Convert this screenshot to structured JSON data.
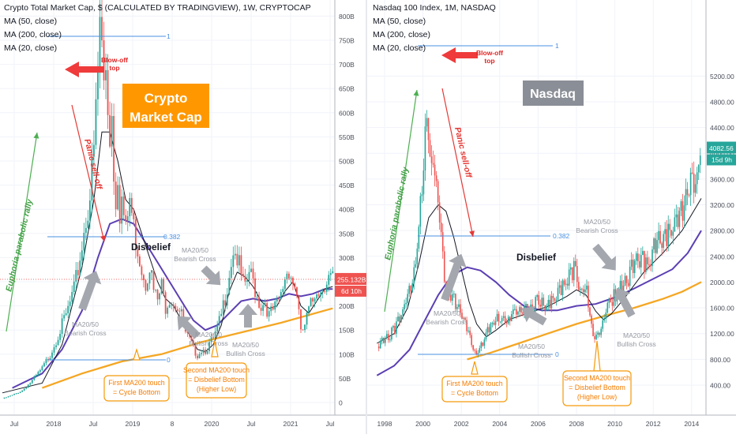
{
  "chart_data": [
    {
      "type": "candlestick",
      "title": "Crypto Total Market Cap, $ (CALCULATED BY TRADINGVIEW), 1W, CRYPTOCAP",
      "legend": [
        "MA (50, close)",
        "MA (200, close)",
        "MA (20, close)"
      ],
      "banner": [
        "Crypto",
        "Market Cap"
      ],
      "y_ticks": [
        "800B",
        "750B",
        "700B",
        "650B",
        "600B",
        "550B",
        "500B",
        "450B",
        "400B",
        "350B",
        "300B",
        "250B",
        "200B",
        "150B",
        "100B",
        "50B",
        "0"
      ],
      "x_ticks": [
        "Jul",
        "2018",
        "Jul",
        "2019",
        "8",
        "2020",
        "Jul",
        "2021",
        "Jul"
      ],
      "ylim": [
        0,
        820
      ],
      "last_price": "255.132B",
      "last_price_value": 255,
      "countdown": "6d 10h",
      "fib": {
        "level_1": "1",
        "level_0382": "0.382",
        "level_0": "0"
      },
      "annotations": {
        "blowoff": [
          "Blow-off",
          "top"
        ],
        "euphoria": "Euphoria parabolic rally",
        "panic": "Panic sell-off",
        "disbelief": "Disbelief",
        "bearish_top": [
          "MA20/50",
          "Bearish Cross"
        ],
        "bearish_left": [
          "MA20/50",
          "Bearish Cross"
        ],
        "bullish_mid": [
          "MA20/50",
          "Bullish Cross"
        ],
        "bullish_right": [
          "MA20/50",
          "Bullish Cross"
        ],
        "first_touch": [
          "First MA200 touch",
          "= Cycle Bottom"
        ],
        "second_touch": [
          "Second MA200 touch",
          "= Disbelief Bottom",
          "(Higher Low)"
        ]
      },
      "price_path": [
        [
          0,
          8
        ],
        [
          5,
          15
        ],
        [
          10,
          25
        ],
        [
          15,
          45
        ],
        [
          20,
          70
        ],
        [
          24,
          100
        ],
        [
          28,
          140
        ],
        [
          32,
          180
        ],
        [
          36,
          230
        ],
        [
          39,
          300
        ],
        [
          42,
          380
        ],
        [
          44,
          430
        ],
        [
          46,
          520
        ],
        [
          47,
          600
        ],
        [
          48,
          680
        ],
        [
          49,
          790
        ],
        [
          50,
          730
        ],
        [
          51,
          660
        ],
        [
          52,
          700
        ],
        [
          53,
          620
        ],
        [
          54,
          560
        ],
        [
          55,
          600
        ],
        [
          56,
          480
        ],
        [
          57,
          430
        ],
        [
          58,
          480
        ],
        [
          59,
          400
        ],
        [
          60,
          420
        ],
        [
          62,
          350
        ],
        [
          64,
          420
        ],
        [
          66,
          360
        ],
        [
          68,
          320
        ],
        [
          70,
          280
        ],
        [
          72,
          250
        ],
        [
          74,
          290
        ],
        [
          76,
          230
        ],
        [
          78,
          210
        ],
        [
          80,
          240
        ],
        [
          82,
          200
        ],
        [
          84,
          220
        ],
        [
          86,
          210
        ],
        [
          88,
          200
        ],
        [
          90,
          180
        ],
        [
          92,
          140
        ],
        [
          94,
          130
        ],
        [
          96,
          110
        ],
        [
          98,
          100
        ],
        [
          100,
          110
        ],
        [
          102,
          110
        ],
        [
          104,
          120
        ],
        [
          106,
          130
        ],
        [
          108,
          150
        ],
        [
          110,
          180
        ],
        [
          112,
          220
        ],
        [
          114,
          270
        ],
        [
          116,
          320
        ],
        [
          118,
          300
        ],
        [
          120,
          260
        ],
        [
          122,
          230
        ],
        [
          124,
          270
        ],
        [
          126,
          250
        ],
        [
          128,
          220
        ],
        [
          130,
          200
        ],
        [
          132,
          210
        ],
        [
          134,
          180
        ],
        [
          136,
          190
        ],
        [
          138,
          200
        ],
        [
          140,
          220
        ],
        [
          142,
          260
        ],
        [
          144,
          280
        ],
        [
          146,
          250
        ],
        [
          148,
          230
        ],
        [
          150,
          140
        ],
        [
          152,
          160
        ],
        [
          154,
          190
        ],
        [
          156,
          210
        ],
        [
          158,
          240
        ],
        [
          160,
          230
        ],
        [
          162,
          250
        ],
        [
          164,
          260
        ],
        [
          166,
          255
        ]
      ],
      "ma20": [
        [
          0,
          20
        ],
        [
          20,
          40
        ],
        [
          30,
          120
        ],
        [
          40,
          280
        ],
        [
          46,
          420
        ],
        [
          50,
          560
        ],
        [
          54,
          560
        ],
        [
          58,
          500
        ],
        [
          62,
          420
        ],
        [
          66,
          400
        ],
        [
          70,
          350
        ],
        [
          74,
          300
        ],
        [
          78,
          250
        ],
        [
          82,
          215
        ],
        [
          86,
          200
        ],
        [
          90,
          170
        ],
        [
          94,
          140
        ],
        [
          98,
          110
        ],
        [
          102,
          105
        ],
        [
          106,
          120
        ],
        [
          110,
          160
        ],
        [
          114,
          230
        ],
        [
          118,
          270
        ],
        [
          122,
          260
        ],
        [
          126,
          240
        ],
        [
          130,
          210
        ],
        [
          134,
          195
        ],
        [
          138,
          200
        ],
        [
          142,
          230
        ],
        [
          146,
          250
        ],
        [
          150,
          200
        ],
        [
          154,
          185
        ],
        [
          158,
          210
        ],
        [
          162,
          235
        ],
        [
          166,
          240
        ]
      ],
      "ma50": [
        [
          5,
          30
        ],
        [
          20,
          60
        ],
        [
          30,
          110
        ],
        [
          40,
          190
        ],
        [
          48,
          300
        ],
        [
          54,
          370
        ],
        [
          60,
          380
        ],
        [
          66,
          370
        ],
        [
          72,
          330
        ],
        [
          78,
          290
        ],
        [
          84,
          250
        ],
        [
          90,
          210
        ],
        [
          96,
          170
        ],
        [
          102,
          150
        ],
        [
          108,
          160
        ],
        [
          114,
          185
        ],
        [
          120,
          210
        ],
        [
          126,
          215
        ],
        [
          132,
          210
        ],
        [
          138,
          215
        ],
        [
          144,
          225
        ],
        [
          150,
          220
        ],
        [
          156,
          225
        ],
        [
          162,
          235
        ],
        [
          166,
          235
        ]
      ],
      "ma200": [
        [
          20,
          30
        ],
        [
          40,
          60
        ],
        [
          60,
          85
        ],
        [
          80,
          100
        ],
        [
          100,
          125
        ],
        [
          120,
          145
        ],
        [
          140,
          165
        ],
        [
          166,
          195
        ]
      ]
    },
    {
      "type": "candlestick",
      "title": "Nasdaq 100 Index, 1M, NASDAQ",
      "legend": [
        "MA (50, close)",
        "MA (200, close)",
        "MA (20, close)"
      ],
      "banner": [
        "Nasdaq"
      ],
      "y_ticks": [
        "5200.00",
        "4800.00",
        "4400.00",
        "4000.00",
        "3600.00",
        "3200.00",
        "2800.00",
        "2400.00",
        "2000.00",
        "1600.00",
        "1200.00",
        "800.00",
        "400.00"
      ],
      "x_ticks": [
        "1998",
        "2000",
        "2002",
        "2004",
        "2006",
        "2008",
        "2010",
        "2012",
        "2014"
      ],
      "ylim": [
        100,
        5450
      ],
      "last_price": "4082.56",
      "last_price_value": 4082.56,
      "countdown": "15d 9h",
      "fib": {
        "level_1": "1",
        "level_0382": "0.382",
        "level_0": "0"
      },
      "annotations": {
        "blowoff": [
          "Blow-off",
          "top"
        ],
        "euphoria": "Euphoria parabolic rally",
        "panic": "Panic sell-off",
        "disbelief": "Disbelief",
        "bearish_top": [
          "MA20/50",
          "Bearish Cross"
        ],
        "bearish_left": [
          "MA20/50",
          "Bearish Cross"
        ],
        "bullish_mid": [
          "MA20/50",
          "Bullish Cross"
        ],
        "bullish_right": [
          "MA20/50",
          "Bullish Cross"
        ],
        "first_touch": [
          "First MA200 touch",
          "= Cycle Bottom"
        ],
        "second_touch": [
          "Second MA200 touch",
          "= Disbelief Bottom",
          "(Higher Low)"
        ]
      },
      "price_path": [
        [
          1997.6,
          1000
        ],
        [
          1998,
          1100
        ],
        [
          1998.5,
          1250
        ],
        [
          1999,
          1600
        ],
        [
          1999.5,
          2100
        ],
        [
          1999.8,
          2800
        ],
        [
          2000.0,
          3800
        ],
        [
          2000.2,
          4700
        ],
        [
          2000.4,
          3700
        ],
        [
          2000.6,
          3900
        ],
        [
          2000.8,
          3200
        ],
        [
          2001.0,
          2500
        ],
        [
          2001.2,
          1900
        ],
        [
          2001.5,
          1800
        ],
        [
          2001.8,
          1600
        ],
        [
          2002.0,
          1500
        ],
        [
          2002.3,
          1300
        ],
        [
          2002.6,
          1000
        ],
        [
          2002.8,
          850
        ],
        [
          2003.0,
          1000
        ],
        [
          2003.3,
          1200
        ],
        [
          2003.6,
          1350
        ],
        [
          2004.0,
          1450
        ],
        [
          2004.3,
          1400
        ],
        [
          2004.6,
          1500
        ],
        [
          2005.0,
          1550
        ],
        [
          2005.5,
          1600
        ],
        [
          2006.0,
          1700
        ],
        [
          2006.5,
          1600
        ],
        [
          2007.0,
          1800
        ],
        [
          2007.5,
          2000
        ],
        [
          2007.9,
          2200
        ],
        [
          2008.2,
          1800
        ],
        [
          2008.5,
          1900
        ],
        [
          2008.8,
          1300
        ],
        [
          2009.0,
          1100
        ],
        [
          2009.3,
          1300
        ],
        [
          2009.6,
          1600
        ],
        [
          2010.0,
          1800
        ],
        [
          2010.3,
          1900
        ],
        [
          2010.6,
          2000
        ],
        [
          2011.0,
          2300
        ],
        [
          2011.4,
          2400
        ],
        [
          2011.7,
          2200
        ],
        [
          2012.0,
          2500
        ],
        [
          2012.3,
          2700
        ],
        [
          2012.7,
          2700
        ],
        [
          2013.0,
          2800
        ],
        [
          2013.4,
          3000
        ],
        [
          2013.8,
          3400
        ],
        [
          2014.0,
          3600
        ],
        [
          2014.3,
          3700
        ],
        [
          2014.5,
          4082
        ]
      ],
      "ma20": [
        [
          1997.6,
          1050
        ],
        [
          1998.5,
          1200
        ],
        [
          1999.2,
          1600
        ],
        [
          1999.8,
          2300
        ],
        [
          2000.3,
          3000
        ],
        [
          2000.8,
          3200
        ],
        [
          2001.2,
          3100
        ],
        [
          2001.6,
          2700
        ],
        [
          2002.0,
          2200
        ],
        [
          2002.4,
          1700
        ],
        [
          2002.8,
          1350
        ],
        [
          2003.3,
          1150
        ],
        [
          2003.8,
          1250
        ],
        [
          2004.5,
          1420
        ],
        [
          2005.5,
          1520
        ],
        [
          2006.5,
          1620
        ],
        [
          2007.5,
          1780
        ],
        [
          2008.0,
          1880
        ],
        [
          2008.5,
          1800
        ],
        [
          2009.0,
          1550
        ],
        [
          2009.4,
          1420
        ],
        [
          2009.8,
          1500
        ],
        [
          2010.5,
          1750
        ],
        [
          2011.5,
          2150
        ],
        [
          2012.5,
          2450
        ],
        [
          2013.5,
          2800
        ],
        [
          2014.5,
          3300
        ]
      ],
      "ma50": [
        [
          1997.6,
          550
        ],
        [
          1998.5,
          700
        ],
        [
          1999.3,
          950
        ],
        [
          2000.0,
          1350
        ],
        [
          2000.8,
          1800
        ],
        [
          2001.5,
          2100
        ],
        [
          2002.3,
          2230
        ],
        [
          2003.0,
          2180
        ],
        [
          2003.8,
          2000
        ],
        [
          2004.5,
          1800
        ],
        [
          2005.3,
          1620
        ],
        [
          2006.2,
          1560
        ],
        [
          2007.0,
          1560
        ],
        [
          2008.0,
          1630
        ],
        [
          2009.0,
          1660
        ],
        [
          2010.0,
          1760
        ],
        [
          2011.0,
          1900
        ],
        [
          2012.0,
          2050
        ],
        [
          2013.0,
          2200
        ],
        [
          2013.8,
          2450
        ],
        [
          2014.5,
          2800
        ]
      ],
      "ma200": [
        [
          2002.3,
          800
        ],
        [
          2003.5,
          900
        ],
        [
          2005.0,
          1050
        ],
        [
          2006.5,
          1200
        ],
        [
          2008.0,
          1350
        ],
        [
          2009.5,
          1480
        ],
        [
          2011.0,
          1600
        ],
        [
          2012.5,
          1740
        ],
        [
          2013.5,
          1850
        ],
        [
          2014.5,
          2000
        ]
      ]
    }
  ]
}
